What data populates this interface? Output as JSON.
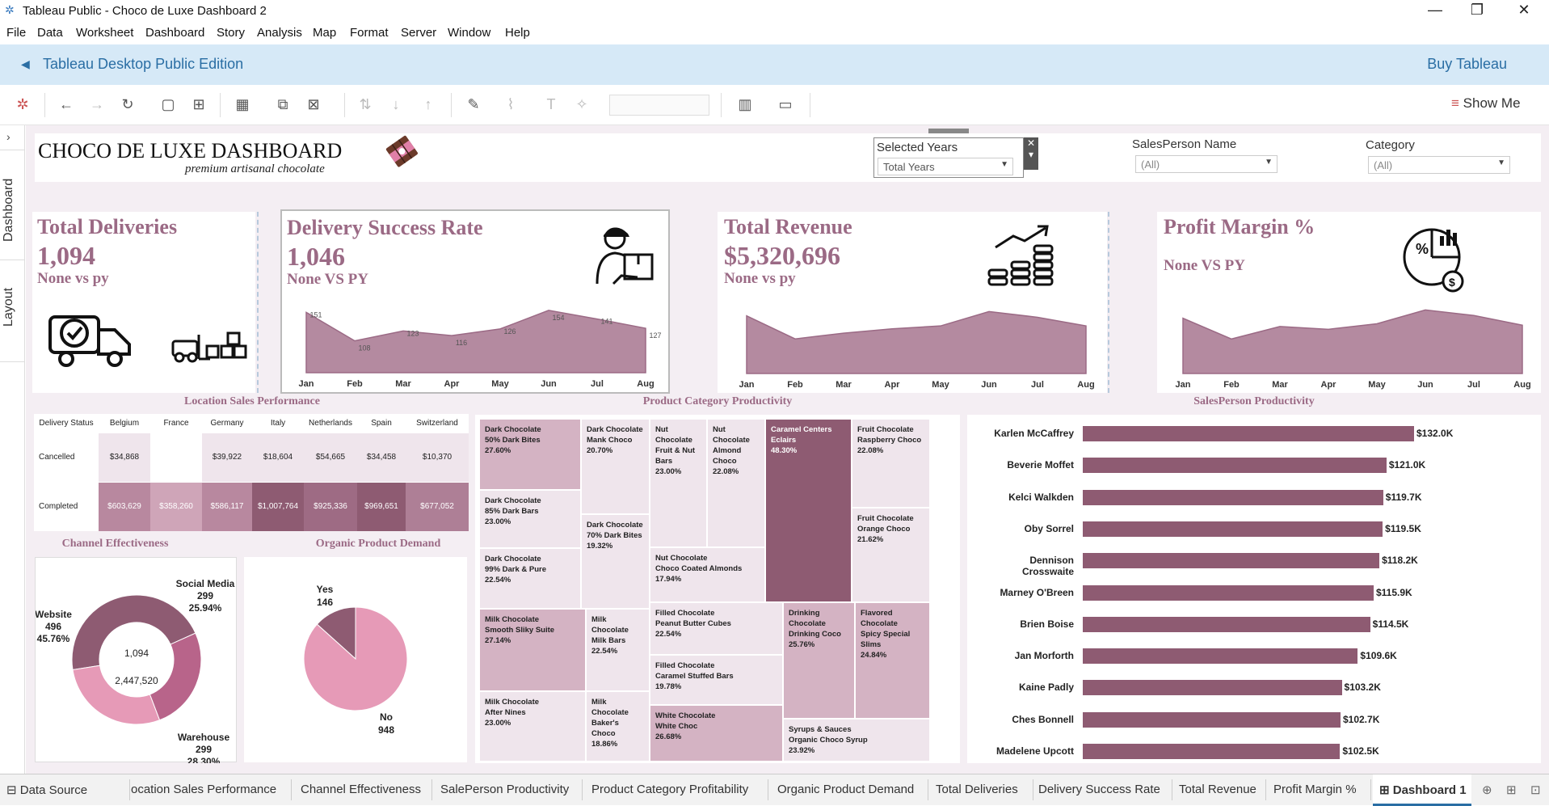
{
  "window": {
    "title": "Tableau Public - Choco de Luxe Dashboard 2",
    "minimize": "—",
    "restore": "❐",
    "close": "✕"
  },
  "menu": [
    "File",
    "Data",
    "Worksheet",
    "Dashboard",
    "Story",
    "Analysis",
    "Map",
    "Format",
    "Server",
    "Window",
    "Help"
  ],
  "edition_bar": {
    "edition": "Tableau Desktop Public Edition",
    "buy": "Buy Tableau"
  },
  "toolbar": {
    "show_me": "Show Me"
  },
  "left_panel": {
    "dashboard": "Dashboard",
    "layout": "Layout"
  },
  "header": {
    "title": "CHOCO DE LUXE DASHBOARD",
    "subtitle": "premium artisanal chocolate"
  },
  "filters": {
    "years": {
      "label": "Selected Years",
      "value": "Total Years"
    },
    "salesperson": {
      "label": "SalesPerson Name",
      "value": "(All)"
    },
    "category": {
      "label": "Category",
      "value": "(All)"
    }
  },
  "kpis": {
    "deliveries": {
      "title": "Total Deliveries",
      "value": "1,094",
      "sub": "None vs py"
    },
    "success": {
      "title": "Delivery Success Rate",
      "value": "1,046",
      "sub": "None VS PY"
    },
    "revenue": {
      "title": "Total Revenue",
      "value": "$5,320,696",
      "sub": "None vs py"
    },
    "margin": {
      "title": "Profit Margin %",
      "sub": "None VS PY"
    }
  },
  "months": [
    "Jan",
    "Feb",
    "Mar",
    "Apr",
    "May",
    "Jun",
    "Jul",
    "Aug"
  ],
  "chart_data": [
    {
      "type": "area",
      "title": "Delivery Success Rate",
      "categories": [
        "Jan",
        "Feb",
        "Mar",
        "Apr",
        "May",
        "Jun",
        "Jul",
        "Aug"
      ],
      "values": [
        151,
        108,
        123,
        116,
        126,
        154,
        141,
        127
      ]
    },
    {
      "type": "area",
      "title": "Total Revenue",
      "categories": [
        "Jan",
        "Feb",
        "Mar",
        "Apr",
        "May",
        "Jun",
        "Jul",
        "Aug"
      ],
      "values": [
        700,
        540,
        580,
        610,
        630,
        730,
        690,
        630
      ]
    },
    {
      "type": "area",
      "title": "Profit Margin %",
      "categories": [
        "Jan",
        "Feb",
        "Mar",
        "Apr",
        "May",
        "Jun",
        "Jul",
        "Aug"
      ],
      "values": [
        700,
        550,
        640,
        620,
        660,
        760,
        720,
        650
      ]
    },
    {
      "type": "bar",
      "title": "SalesPerson Productivity",
      "categories": [
        "Karlen McCaffrey",
        "Beverie Moffet",
        "Kelci Walkden",
        "Oby Sorrel",
        "Dennison Crosswaite",
        "Marney O'Breen",
        "Brien Boise",
        "Jan Morforth",
        "Kaine Padly",
        "Ches Bonnell",
        "Madelene Upcott"
      ],
      "labels": [
        "$132.0K",
        "$121.0K",
        "$119.7K",
        "$119.5K",
        "$118.2K",
        "$115.9K",
        "$114.5K",
        "$109.6K",
        "$103.2K",
        "$102.7K",
        "$102.5K"
      ],
      "values": [
        132.0,
        121.0,
        119.7,
        119.5,
        118.2,
        115.9,
        114.5,
        109.6,
        103.2,
        102.7,
        102.5
      ]
    },
    {
      "type": "pie",
      "title": "Channel Effectiveness",
      "center_top": "1,094",
      "center_bottom": "2,447,520",
      "slices": [
        {
          "name": "Website",
          "count": "496",
          "pct": "45.76%",
          "value": 45.76
        },
        {
          "name": "Social Media",
          "count": "299",
          "pct": "25.94%",
          "value": 25.94
        },
        {
          "name": "Warehouse",
          "count": "299",
          "pct": "28.30%",
          "value": 28.3
        }
      ]
    },
    {
      "type": "pie",
      "title": "Organic Product Demand",
      "slices": [
        {
          "name": "Yes",
          "count": "146",
          "value": 146
        },
        {
          "name": "No",
          "count": "948",
          "value": 948
        }
      ]
    }
  ],
  "location": {
    "title": "Location Sales Performance",
    "headers": [
      "Delivery Status",
      "Belgium",
      "France",
      "Germany",
      "Italy",
      "Netherlands",
      "Spain",
      "Switzerland"
    ],
    "rows": [
      {
        "status": "Cancelled",
        "cells": [
          "$34,868",
          "",
          "$39,922",
          "$18,604",
          "$54,665",
          "$34,458",
          "$10,370"
        ]
      },
      {
        "status": "Completed",
        "cells": [
          "$603,629",
          "$358,260",
          "$586,117",
          "$1,007,764",
          "$925,336",
          "$969,651",
          "$677,052"
        ]
      }
    ],
    "colors": [
      [
        "#efe5ec",
        "#ffffff",
        "#efe5ec",
        "#efe5ec",
        "#efe5ec",
        "#efe5ec",
        "#efe5ec"
      ],
      [
        "#b8889f",
        "#cfa5b8",
        "#b8889f",
        "#8e5b72",
        "#9e6b84",
        "#8e5b72",
        "#ae7f96"
      ]
    ]
  },
  "product": {
    "title": "Product Category Productivity",
    "tiles": [
      {
        "a": "Dark Chocolate",
        "b": "50% Dark Bites",
        "p": "27.60%"
      },
      {
        "a": "Dark Chocolate",
        "b": "85% Dark Bars",
        "p": "23.00%"
      },
      {
        "a": "Dark Chocolate",
        "b": "99% Dark & Pure",
        "p": "22.54%"
      },
      {
        "a": "Dark Chocolate",
        "b": "Mank Choco",
        "p": "20.70%"
      },
      {
        "a": "Dark Chocolate",
        "b": "70% Dark Bites",
        "p": "19.32%"
      },
      {
        "a": "Nut Chocolate",
        "b": "Fruit & Nut Bars",
        "p": "23.00%"
      },
      {
        "a": "Nut Chocolate",
        "b": "Almond Choco",
        "p": "22.08%"
      },
      {
        "a": "Nut Chocolate",
        "b": "Choco Coated Almonds",
        "p": "17.94%"
      },
      {
        "a": "Caramel Centers",
        "b": "Eclairs",
        "p": "48.30%"
      },
      {
        "a": "Fruit Chocolate",
        "b": "Raspberry Choco",
        "p": "22.08%"
      },
      {
        "a": "Fruit Chocolate",
        "b": "Orange Choco",
        "p": "21.62%"
      },
      {
        "a": "Milk Chocolate",
        "b": "Smooth Sliky Suite",
        "p": "27.14%"
      },
      {
        "a": "Milk Chocolate",
        "b": "Milk Bars",
        "p": "22.54%"
      },
      {
        "a": "Milk Chocolate",
        "b": "After Nines",
        "p": "23.00%"
      },
      {
        "a": "Milk Chocolate",
        "b": "Baker's Choco",
        "p": "18.86%"
      },
      {
        "a": "Filled Chocolate",
        "b": "Peanut Butter Cubes",
        "p": "22.54%"
      },
      {
        "a": "Filled Chocolate",
        "b": "Caramel Stuffed Bars",
        "p": "19.78%"
      },
      {
        "a": "White Chocolate",
        "b": "White Choc",
        "p": "26.68%"
      },
      {
        "a": "Drinking Chocolate",
        "b": "Drinking Coco",
        "p": "25.76%"
      },
      {
        "a": "Flavored Chocolate",
        "b": "Spicy Special Slims",
        "p": "24.84%"
      },
      {
        "a": "Syrups & Sauces",
        "b": "Organic Choco Syrup",
        "p": "23.92%"
      }
    ]
  },
  "salesperson_title": "SalesPerson Productivity",
  "channel_title": "Channel Effectiveness",
  "organic_title": "Organic Product Demand",
  "bottom_tabs": [
    "Data Source",
    "ocation Sales Performance",
    "Channel Effectiveness",
    "SalePerson Productivity",
    "Product Category Profitability",
    "Organic Product Demand",
    "Total Deliveries",
    "Delivery Success Rate",
    "Total Revenue",
    "Profit Margin %",
    "Dashboard 1"
  ],
  "colors": {
    "accent": "#9b6a85",
    "bar": "#8e5b72",
    "edition_bg": "#d6e9f7",
    "canvas_bg": "#f4eef3"
  }
}
